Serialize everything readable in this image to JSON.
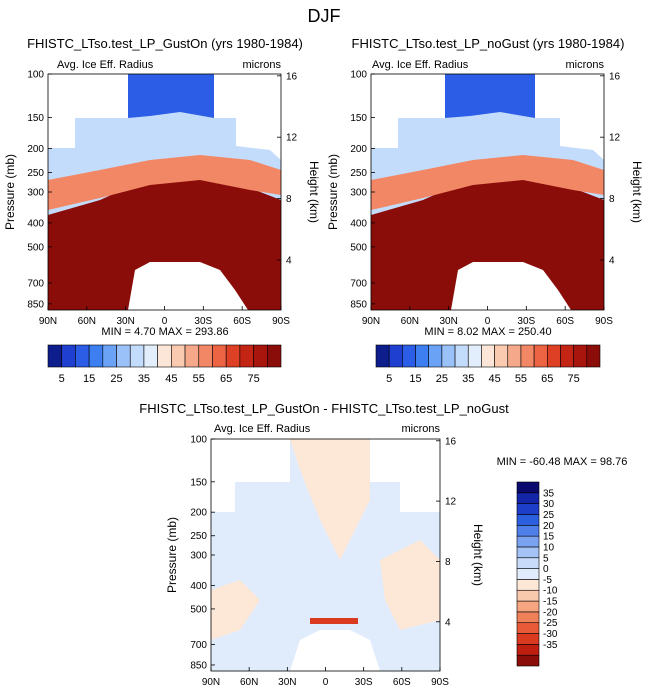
{
  "figure": {
    "title": "DJF"
  },
  "colors": {
    "white": "#ffffff",
    "gray": "#000000",
    "dark_red": "#8b0d0a",
    "blue_scale": [
      "#0d1d8c",
      "#1e3fd0",
      "#2b5de6",
      "#3d7ff0",
      "#6aa2f5",
      "#9bc2f8",
      "#c4dcfb",
      "#e2eefc"
    ],
    "red_scale": [
      "#fce6d8",
      "#f9c9b0",
      "#f6a98a",
      "#f28765",
      "#ec6444",
      "#dd4025",
      "#c42414",
      "#a8150c"
    ],
    "diff_scale": [
      "#0a0a6e",
      "#1426a8",
      "#1c3ec8",
      "#2c5ee0",
      "#4f80ea",
      "#7aa2f1",
      "#a4c2f6",
      "#c8dcfa",
      "#e0ecfc",
      "#fde8d8",
      "#f9c9ad",
      "#f5a580",
      "#f0805a",
      "#e85a38",
      "#d93a20",
      "#bf1f10",
      "#8b0d0a"
    ]
  },
  "chart_data": [
    {
      "type": "heatmap",
      "title": "FHISTC_LTso.test_LP_GustOn (yrs 1980-1984)",
      "left_label": "Avg. Ice Eff. Radius",
      "right_label": "microns",
      "ylabel": "Pressure (mb)",
      "ylabel_right": "Height (km)",
      "x_ticks": [
        "90N",
        "60N",
        "30N",
        "0",
        "30S",
        "60S",
        "90S"
      ],
      "y_ticks": [
        "100",
        "150",
        "200",
        "250",
        "300",
        "400",
        "500",
        "700",
        "850"
      ],
      "y_ticks_right": [
        "16",
        "12",
        "8",
        "4"
      ],
      "stats": "MIN =  4.70  MAX = 293.86",
      "colorbar_labels": [
        "5",
        "15",
        "25",
        "35",
        "45",
        "55",
        "65",
        "75"
      ],
      "xlim": [
        90,
        -90
      ],
      "ylim": [
        100,
        900
      ],
      "min": 4.7,
      "max": 293.86
    },
    {
      "type": "heatmap",
      "title": "FHISTC_LTso.test_LP_noGust (yrs 1980-1984)",
      "left_label": "Avg. Ice Eff. Radius",
      "right_label": "microns",
      "ylabel": "Pressure (mb)",
      "ylabel_right": "Height (km)",
      "x_ticks": [
        "90N",
        "60N",
        "30N",
        "0",
        "30S",
        "60S",
        "90S"
      ],
      "y_ticks": [
        "100",
        "150",
        "200",
        "250",
        "300",
        "400",
        "500",
        "700",
        "850"
      ],
      "y_ticks_right": [
        "16",
        "12",
        "8",
        "4"
      ],
      "stats": "MIN =  8.02  MAX = 250.40",
      "colorbar_labels": [
        "5",
        "15",
        "25",
        "35",
        "45",
        "55",
        "65",
        "75"
      ],
      "xlim": [
        90,
        -90
      ],
      "ylim": [
        100,
        900
      ],
      "min": 8.02,
      "max": 250.4
    },
    {
      "type": "heatmap",
      "title": "FHISTC_LTso.test_LP_GustOn - FHISTC_LTso.test_LP_noGust",
      "left_label": "Avg. Ice Eff. Radius",
      "right_label": "microns",
      "ylabel": "Pressure (mb)",
      "ylabel_right": "Height (km)",
      "x_ticks": [
        "90N",
        "60N",
        "30N",
        "0",
        "30S",
        "60S",
        "90S"
      ],
      "y_ticks": [
        "100",
        "150",
        "200",
        "250",
        "300",
        "400",
        "500",
        "700",
        "850"
      ],
      "y_ticks_right": [
        "16",
        "12",
        "8",
        "4"
      ],
      "stats": "MIN = -60.48  MAX =  98.76",
      "colorbar_labels": [
        "35",
        "30",
        "25",
        "20",
        "15",
        "10",
        "5",
        "0",
        "-5",
        "-10",
        "-15",
        "-20",
        "-25",
        "-30",
        "-35"
      ],
      "xlim": [
        90,
        -90
      ],
      "ylim": [
        100,
        900
      ],
      "min": -60.48,
      "max": 98.76
    }
  ]
}
